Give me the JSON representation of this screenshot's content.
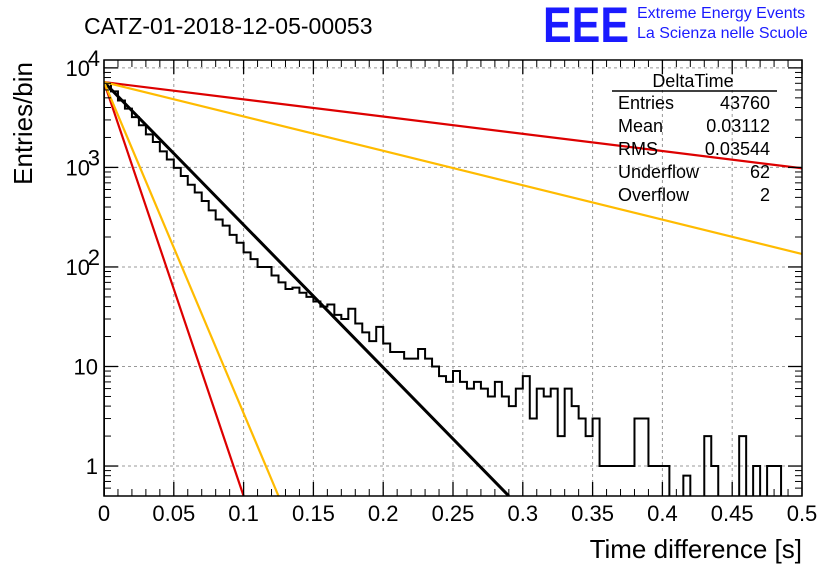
{
  "chart_data": {
    "type": "histogram",
    "title": "CATZ-01-2018-12-05-00053",
    "xlabel": "Time difference [s]",
    "ylabel": "Entries/bin",
    "xlim": [
      0,
      0.5
    ],
    "ylim": [
      0.5,
      12000
    ],
    "yscale": "log",
    "grid": true,
    "x_ticks": [
      "0",
      "0.05",
      "0.1",
      "0.15",
      "0.2",
      "0.25",
      "0.3",
      "0.35",
      "0.4",
      "0.45",
      "0.5"
    ],
    "y_ticks": [
      {
        "value": 1,
        "label": "1"
      },
      {
        "value": 10,
        "label": "10"
      },
      {
        "value": 100,
        "label": "10",
        "exp": "2"
      },
      {
        "value": 1000,
        "label": "10",
        "exp": "3"
      },
      {
        "value": 10000,
        "label": "10",
        "exp": "4"
      }
    ],
    "histogram": {
      "bin_width": 0.005,
      "values": [
        7000,
        5800,
        4700,
        3900,
        3200,
        2650,
        2150,
        1800,
        1450,
        1200,
        990,
        820,
        670,
        560,
        460,
        370,
        300,
        260,
        210,
        175,
        140,
        120,
        100,
        100,
        82,
        70,
        60,
        62,
        55,
        50,
        45,
        40,
        42,
        33,
        30,
        38,
        27,
        22,
        18,
        25,
        17,
        14,
        14,
        12,
        12,
        15,
        12,
        10,
        8,
        7,
        9,
        7,
        6,
        7,
        6,
        5,
        7,
        5,
        4,
        6,
        8,
        3,
        6,
        5,
        6,
        2,
        6,
        4,
        3,
        2,
        3,
        1,
        1,
        1,
        1,
        1,
        3,
        3,
        1,
        1,
        1,
        0,
        0,
        0.8,
        0,
        0,
        2,
        1,
        0,
        0,
        0,
        2,
        0,
        1,
        0,
        1,
        1,
        0,
        0,
        0
      ]
    },
    "fits": [
      {
        "color": "#000000",
        "y0": 7200,
        "x_end": 0.29,
        "y_end": 0.48
      },
      {
        "color": "#dd0000",
        "y0": 7200,
        "x_end": 0.5,
        "y_end": 980
      },
      {
        "color": "#ffbb00",
        "y0": 7200,
        "x_end": 0.5,
        "y_end": 135
      },
      {
        "color": "#dd0000",
        "y0": 7200,
        "x_end": 0.1,
        "y_end": 0.45
      },
      {
        "color": "#ffbb00",
        "y0": 7200,
        "x_end": 0.125,
        "y_end": 0.45
      }
    ],
    "stats_box": {
      "title": "DeltaTime",
      "rows": [
        {
          "label": "Entries",
          "value": "43760"
        },
        {
          "label": "Mean",
          "value": "0.03112"
        },
        {
          "label": "RMS",
          "value": "0.03544"
        },
        {
          "label": "Underflow",
          "value": "62"
        },
        {
          "label": "Overflow",
          "value": "2"
        }
      ]
    },
    "logo": {
      "text": "EEE",
      "line1": "Extreme Energy Events",
      "line2": "La Scienza nelle Scuole",
      "color": "#1a1aff"
    }
  }
}
